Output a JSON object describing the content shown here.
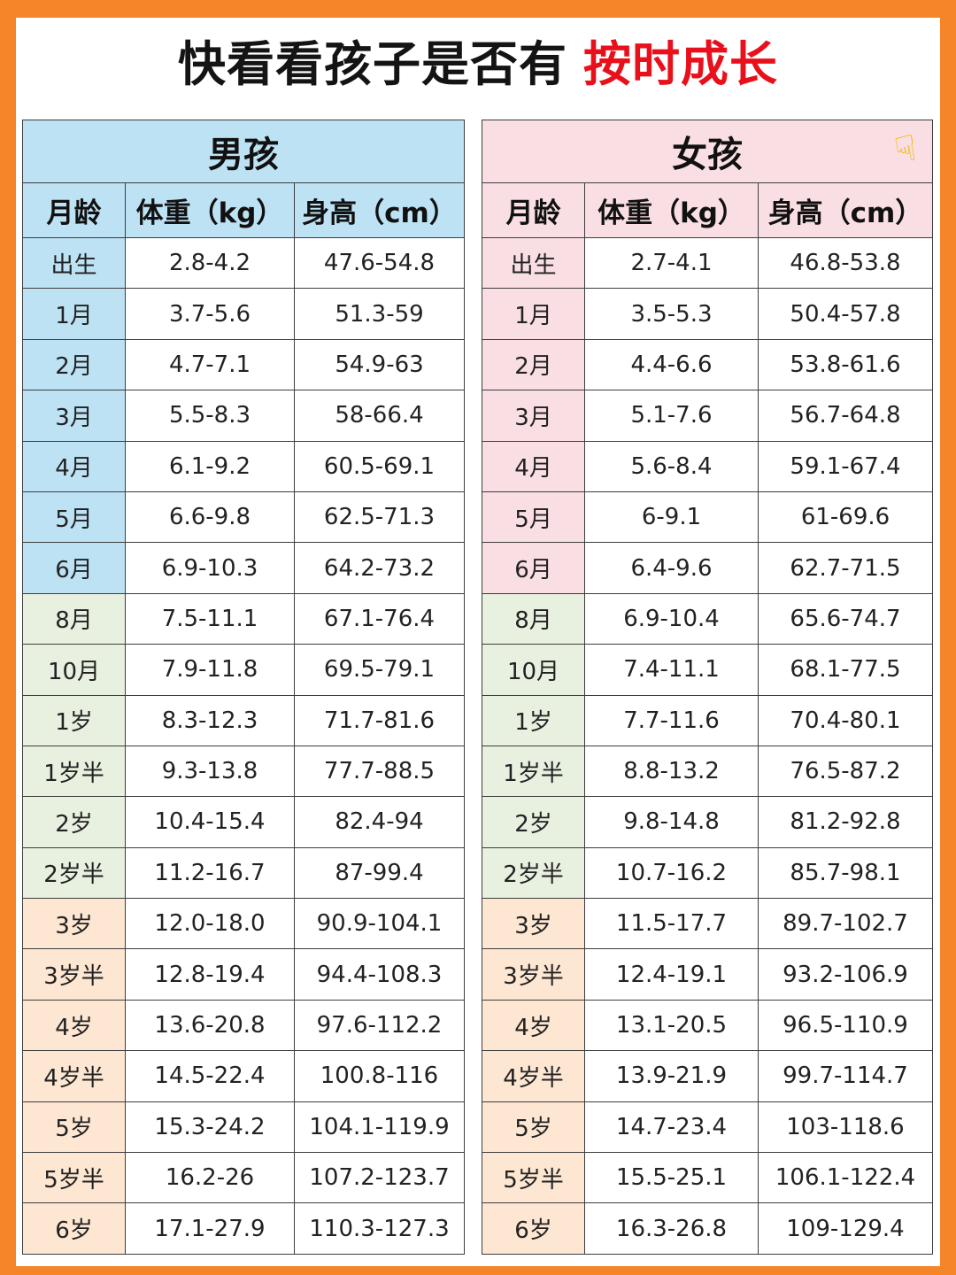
{
  "title": {
    "main": "快看看孩子是否有",
    "highlight": "按时成长"
  },
  "boy": {
    "label": "男孩"
  },
  "girl": {
    "label": "女孩",
    "hand_icon": "pointing-down-hand-icon"
  },
  "columns": {
    "age": "月龄",
    "weight": "体重（kg）",
    "height": "身高（cm）"
  },
  "colors": {
    "border": "#f6852a",
    "highlight": "#e8111b",
    "boy_header": "#bde2f4",
    "girl_header": "#f9dfe4",
    "group2": "#e8f0e0",
    "group3": "#fde6d2"
  },
  "boy_rows": [
    {
      "age": "出生",
      "weight": "2.8-4.2",
      "height": "47.6-54.8"
    },
    {
      "age": "1月",
      "weight": "3.7-5.6",
      "height": "51.3-59"
    },
    {
      "age": "2月",
      "weight": "4.7-7.1",
      "height": "54.9-63"
    },
    {
      "age": "3月",
      "weight": "5.5-8.3",
      "height": "58-66.4"
    },
    {
      "age": "4月",
      "weight": "6.1-9.2",
      "height": "60.5-69.1"
    },
    {
      "age": "5月",
      "weight": "6.6-9.8",
      "height": "62.5-71.3"
    },
    {
      "age": "6月",
      "weight": "6.9-10.3",
      "height": "64.2-73.2"
    },
    {
      "age": "8月",
      "weight": "7.5-11.1",
      "height": "67.1-76.4"
    },
    {
      "age": "10月",
      "weight": "7.9-11.8",
      "height": "69.5-79.1"
    },
    {
      "age": "1岁",
      "weight": "8.3-12.3",
      "height": "71.7-81.6"
    },
    {
      "age": "1岁半",
      "weight": "9.3-13.8",
      "height": "77.7-88.5"
    },
    {
      "age": "2岁",
      "weight": "10.4-15.4",
      "height": "82.4-94"
    },
    {
      "age": "2岁半",
      "weight": "11.2-16.7",
      "height": "87-99.4"
    },
    {
      "age": "3岁",
      "weight": "12.0-18.0",
      "height": "90.9-104.1"
    },
    {
      "age": "3岁半",
      "weight": "12.8-19.4",
      "height": "94.4-108.3"
    },
    {
      "age": "4岁",
      "weight": "13.6-20.8",
      "height": "97.6-112.2"
    },
    {
      "age": "4岁半",
      "weight": "14.5-22.4",
      "height": "100.8-116"
    },
    {
      "age": "5岁",
      "weight": "15.3-24.2",
      "height": "104.1-119.9"
    },
    {
      "age": "5岁半",
      "weight": "16.2-26",
      "height": "107.2-123.7"
    },
    {
      "age": "6岁",
      "weight": "17.1-27.9",
      "height": "110.3-127.3"
    }
  ],
  "girl_rows": [
    {
      "age": "出生",
      "weight": "2.7-4.1",
      "height": "46.8-53.8"
    },
    {
      "age": "1月",
      "weight": "3.5-5.3",
      "height": "50.4-57.8"
    },
    {
      "age": "2月",
      "weight": "4.4-6.6",
      "height": "53.8-61.6"
    },
    {
      "age": "3月",
      "weight": "5.1-7.6",
      "height": "56.7-64.8"
    },
    {
      "age": "4月",
      "weight": "5.6-8.4",
      "height": "59.1-67.4"
    },
    {
      "age": "5月",
      "weight": "6-9.1",
      "height": "61-69.6"
    },
    {
      "age": "6月",
      "weight": "6.4-9.6",
      "height": "62.7-71.5"
    },
    {
      "age": "8月",
      "weight": "6.9-10.4",
      "height": "65.6-74.7"
    },
    {
      "age": "10月",
      "weight": "7.4-11.1",
      "height": "68.1-77.5"
    },
    {
      "age": "1岁",
      "weight": "7.7-11.6",
      "height": "70.4-80.1"
    },
    {
      "age": "1岁半",
      "weight": "8.8-13.2",
      "height": "76.5-87.2"
    },
    {
      "age": "2岁",
      "weight": "9.8-14.8",
      "height": "81.2-92.8"
    },
    {
      "age": "2岁半",
      "weight": "10.7-16.2",
      "height": "85.7-98.1"
    },
    {
      "age": "3岁",
      "weight": "11.5-17.7",
      "height": "89.7-102.7"
    },
    {
      "age": "3岁半",
      "weight": "12.4-19.1",
      "height": "93.2-106.9"
    },
    {
      "age": "4岁",
      "weight": "13.1-20.5",
      "height": "96.5-110.9"
    },
    {
      "age": "4岁半",
      "weight": "13.9-21.9",
      "height": "99.7-114.7"
    },
    {
      "age": "5岁",
      "weight": "14.7-23.4",
      "height": "103-118.6"
    },
    {
      "age": "5岁半",
      "weight": "15.5-25.1",
      "height": "106.1-122.4"
    },
    {
      "age": "6岁",
      "weight": "16.3-26.8",
      "height": "109-129.4"
    }
  ]
}
